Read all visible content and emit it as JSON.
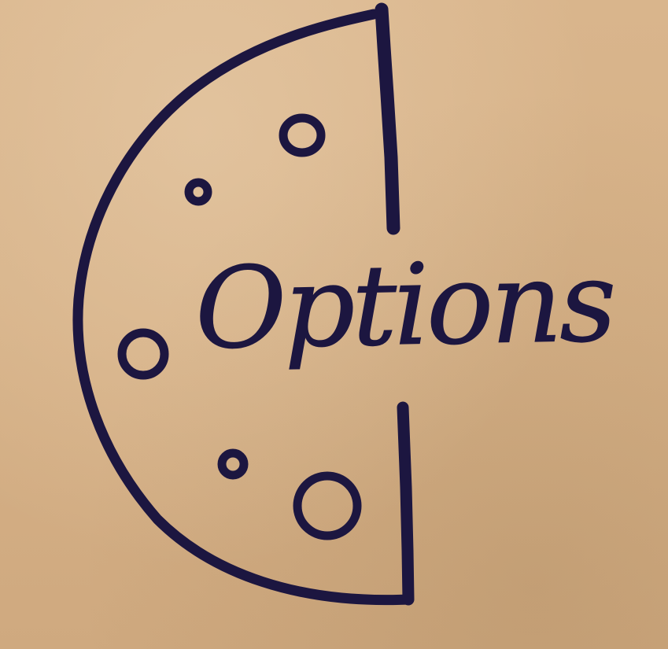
{
  "sketch": {
    "label": "Options",
    "ink_color": "#1c1640",
    "paper_color": "#d6b187",
    "shape_icon": "half-cheese-icon"
  }
}
